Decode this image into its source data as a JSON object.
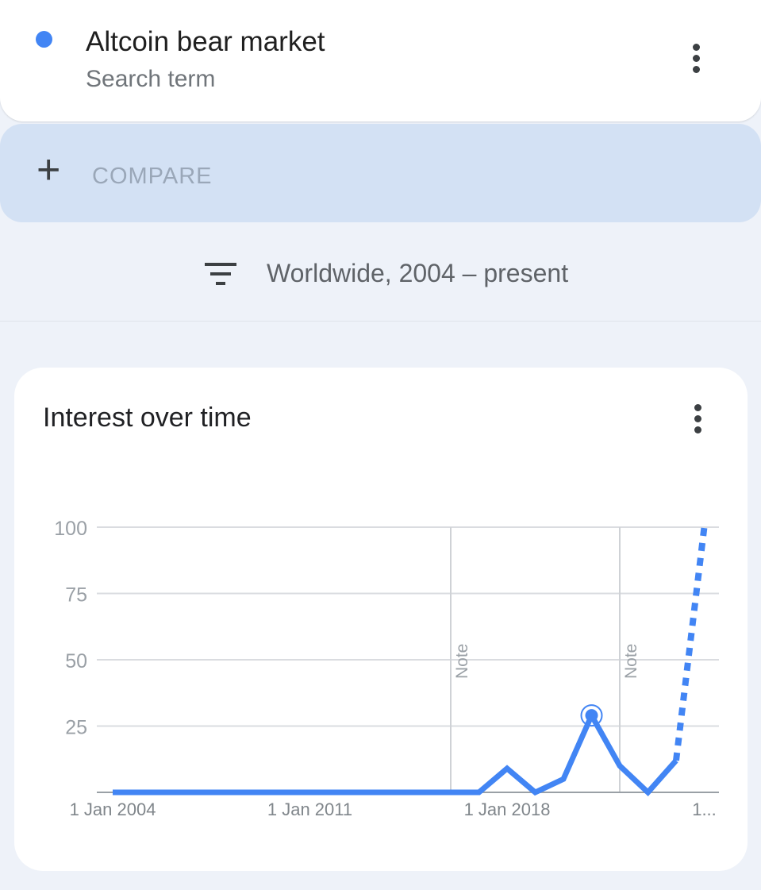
{
  "search_term": {
    "label": "Altcoin bear market",
    "type": "Search term",
    "color": "#4285f4",
    "menu_icon": "more-vert-icon"
  },
  "compare": {
    "icon": "plus-icon",
    "label": "COMPARE"
  },
  "filter": {
    "icon": "filter-icon",
    "label": "Worldwide, 2004 – present"
  },
  "chart_card": {
    "title": "Interest over time",
    "menu_icon": "more-vert-icon"
  },
  "chart_data": {
    "type": "line",
    "x": [
      2004,
      2005,
      2006,
      2007,
      2008,
      2009,
      2010,
      2011,
      2012,
      2013,
      2014,
      2015,
      2016,
      2017,
      2018,
      2019,
      2020,
      2021,
      2022,
      2023,
      2024,
      2025
    ],
    "values": [
      0,
      0,
      0,
      0,
      0,
      0,
      0,
      0,
      0,
      0,
      0,
      0,
      0,
      0,
      9,
      0,
      5,
      29,
      10,
      0,
      12,
      100
    ],
    "partial_from_index": 20,
    "highlight_index": 17,
    "ylim": [
      0,
      100
    ],
    "yticks": [
      "100",
      "75",
      "50",
      "25"
    ],
    "xtick_labels": [
      {
        "year": 2004,
        "label": "1 Jan 2004"
      },
      {
        "year": 2011,
        "label": "1 Jan 2011"
      },
      {
        "year": 2018,
        "label": "1 Jan 2018"
      },
      {
        "year": 2025,
        "label": "1..."
      }
    ],
    "notes": [
      {
        "year": 2016,
        "label": "Note"
      },
      {
        "year": 2022,
        "label": "Note"
      }
    ],
    "grid": true,
    "color": "#4285f4"
  }
}
